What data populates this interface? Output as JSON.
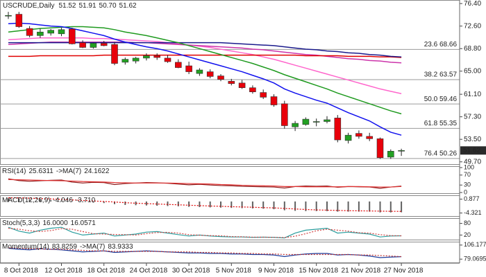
{
  "chart_data": [
    {
      "type": "candlestick",
      "symbol": "USCRUDE,Daily",
      "categories": [
        null,
        "8 Oct 2018",
        null,
        null,
        null,
        "12 Oct 2018",
        null,
        null,
        null,
        "18 Oct 2018",
        null,
        null,
        null,
        "24 Oct 2018",
        null,
        null,
        null,
        "30 Oct 2018",
        null,
        null,
        null,
        "5 Nov 2018",
        null,
        null,
        null,
        "9 Nov 2018",
        null,
        null,
        null,
        "15 Nov 2018",
        null,
        null,
        null,
        "21 Nov 2018",
        null,
        null,
        null,
        "27 Nov 2018"
      ],
      "open": [
        74.3,
        74.6,
        72.2,
        71.0,
        71.4,
        71.3,
        72.1,
        69.8,
        69.0,
        69.7,
        69.5,
        66.5,
        66.7,
        67.2,
        67.6,
        67.2,
        66.5,
        65.9,
        64.6,
        64.9,
        64.2,
        63.3,
        63.0,
        62.2,
        61.4,
        60.7,
        59.5,
        55.6,
        56.0,
        56.4,
        56.5,
        57.1,
        53.3,
        54.5,
        54.0,
        53.6,
        50.5,
        51.52
      ],
      "high": [
        75.0,
        75.0,
        72.6,
        72.2,
        72.1,
        72.3,
        72.3,
        70.2,
        69.8,
        70.1,
        69.9,
        67.3,
        67.4,
        68.0,
        68.0,
        67.7,
        67.0,
        66.6,
        65.5,
        65.3,
        64.5,
        63.7,
        63.5,
        62.6,
        61.9,
        61.1,
        60.0,
        56.6,
        57.2,
        57.0,
        57.4,
        57.6,
        54.6,
        55.0,
        54.6,
        53.8,
        51.8,
        51.91
      ],
      "low": [
        73.8,
        72.3,
        70.7,
        70.6,
        71.0,
        70.9,
        69.5,
        68.9,
        68.8,
        69.2,
        66.0,
        66.1,
        66.3,
        66.8,
        66.9,
        66.4,
        65.5,
        64.5,
        64.2,
        63.8,
        63.3,
        62.6,
        62.0,
        61.2,
        60.3,
        59.0,
        55.3,
        54.9,
        55.8,
        55.7,
        56.2,
        53.0,
        52.8,
        53.6,
        53.2,
        50.2,
        50.2,
        50.7
      ],
      "close": [
        74.4,
        72.5,
        71.0,
        71.6,
        71.9,
        72.0,
        69.6,
        69.0,
        69.7,
        69.3,
        66.3,
        67.0,
        67.2,
        67.6,
        67.3,
        66.6,
        65.6,
        64.9,
        65.2,
        64.1,
        63.6,
        62.9,
        62.2,
        61.5,
        60.6,
        59.3,
        55.8,
        56.2,
        56.9,
        56.5,
        56.8,
        53.4,
        54.2,
        54.0,
        53.6,
        50.4,
        51.5,
        51.62
      ],
      "low_last_label": "50.70",
      "up_color": "#22a022",
      "down_color": "#e8000b",
      "ylim": [
        49.2,
        77.0
      ],
      "yticks": [
        {
          "value": 76.4,
          "label": "76.40"
        },
        {
          "value": 72.6,
          "label": "72.60"
        },
        {
          "value": 68.8,
          "label": "68.80"
        },
        {
          "value": 65.0,
          "label": "65.00"
        },
        {
          "value": 61.1,
          "label": "61.10"
        },
        {
          "value": 57.3,
          "label": "57.30"
        },
        {
          "value": 53.5,
          "label": "53.50"
        },
        {
          "value": 49.7,
          "label": "49.70"
        }
      ],
      "fib_levels": [
        {
          "value": 68.66,
          "label": "23.6 68.66"
        },
        {
          "value": 63.57,
          "label": "38.2 63.57"
        },
        {
          "value": 59.46,
          "label": "50.0 59.46"
        },
        {
          "value": 55.35,
          "label": "61.8 55.35"
        },
        {
          "value": 50.26,
          "label": "76.4 50.26"
        }
      ],
      "overlays": [
        {
          "color": "#ff66cc",
          "values": [
            70.3,
            70.4,
            70.5,
            70.6,
            70.6,
            70.6,
            70.6,
            70.6,
            70.5,
            70.5,
            70.4,
            70.3,
            70.2,
            70.1,
            70.0,
            69.8,
            69.6,
            69.4,
            69.2,
            69.0,
            68.7,
            68.4,
            68.1,
            67.8,
            67.4,
            67.0,
            66.5,
            66.0,
            65.5,
            65.0,
            64.5,
            64.0,
            63.5,
            63.0,
            62.5,
            62.0,
            61.6,
            61.2
          ]
        },
        {
          "color": "#cc33aa",
          "values": [
            69.5,
            69.6,
            69.7,
            69.8,
            69.9,
            69.9,
            69.9,
            69.9,
            69.9,
            69.9,
            69.9,
            69.9,
            69.8,
            69.8,
            69.7,
            69.6,
            69.5,
            69.4,
            69.3,
            69.2,
            69.1,
            69.0,
            68.9,
            68.7,
            68.6,
            68.4,
            68.2,
            68.0,
            67.8,
            67.7,
            67.5,
            67.3,
            67.1,
            67.0,
            66.8,
            66.7,
            66.5,
            66.4
          ]
        },
        {
          "color": "#e00000",
          "values": [
            67.5,
            67.5,
            67.5,
            67.6,
            67.6,
            67.6,
            67.6,
            67.6,
            67.6,
            67.7,
            67.7,
            67.7,
            67.7,
            67.7,
            67.7,
            67.7,
            67.7,
            67.7,
            67.7,
            67.7,
            67.7,
            67.7,
            67.7,
            67.7,
            67.7,
            67.7,
            67.7,
            67.7,
            67.6,
            67.6,
            67.6,
            67.6,
            67.5,
            67.5,
            67.5,
            67.4,
            67.4,
            67.3
          ]
        },
        {
          "color": "#1a1a8c",
          "values": [
            69.8,
            69.8,
            69.8,
            69.8,
            69.8,
            69.8,
            69.8,
            69.8,
            69.8,
            69.8,
            69.8,
            69.8,
            69.8,
            69.8,
            69.8,
            69.8,
            69.8,
            69.8,
            69.8,
            69.8,
            69.8,
            69.7,
            69.6,
            69.5,
            69.4,
            69.3,
            69.1,
            68.9,
            68.7,
            68.6,
            68.4,
            68.3,
            68.1,
            68.0,
            67.8,
            67.7,
            67.5,
            67.4
          ]
        },
        {
          "color": "#1f9a1f",
          "values": [
            71.6,
            71.8,
            72.0,
            72.2,
            72.3,
            72.4,
            72.5,
            72.5,
            72.4,
            72.3,
            72.0,
            71.6,
            71.3,
            71.0,
            70.6,
            70.2,
            69.8,
            69.3,
            68.8,
            68.3,
            67.8,
            67.3,
            66.8,
            66.3,
            65.7,
            65.1,
            64.4,
            63.8,
            63.2,
            62.6,
            62.0,
            61.3,
            60.7,
            60.1,
            59.5,
            58.9,
            58.3,
            57.8
          ]
        },
        {
          "color": "#1010ee",
          "values": [
            73.0,
            73.1,
            73.0,
            72.8,
            72.6,
            72.5,
            72.2,
            71.8,
            71.4,
            71.0,
            70.4,
            69.9,
            69.5,
            69.1,
            68.8,
            68.4,
            67.9,
            67.4,
            66.9,
            66.4,
            65.9,
            65.4,
            64.9,
            64.3,
            63.7,
            63.0,
            62.0,
            61.3,
            60.7,
            60.1,
            59.6,
            58.8,
            58.0,
            57.3,
            56.6,
            55.6,
            54.7,
            54.2
          ]
        }
      ]
    },
    {
      "type": "line",
      "title": "RSI(14)",
      "ylim": [
        0,
        100
      ],
      "yticks": [
        0,
        30,
        70,
        100
      ],
      "series": [
        {
          "color": "#8b1a1a",
          "style": "solid",
          "values": [
            55,
            48,
            45,
            47,
            49,
            50,
            42,
            38,
            41,
            40,
            32,
            36,
            38,
            40,
            39,
            37,
            34,
            31,
            33,
            30,
            28,
            27,
            25,
            24,
            23,
            22,
            18,
            24,
            26,
            25,
            26,
            21,
            24,
            23,
            22,
            17,
            22,
            25.6311
          ]
        },
        {
          "label": "->MA(7)",
          "color": "#e03030",
          "style": "solid",
          "values": [
            52,
            51,
            50,
            49,
            48,
            47,
            46,
            44,
            43,
            42,
            40,
            39,
            38,
            38,
            38,
            38,
            37,
            36,
            35,
            34,
            32,
            31,
            29,
            28,
            27,
            26,
            24,
            24,
            23,
            23,
            23,
            23,
            24,
            24,
            23,
            22,
            22,
            24.1622
          ]
        }
      ]
    },
    {
      "type": "bar",
      "title": "MACD(12,26,9)",
      "ylim": [
        -5.2,
        1.8
      ],
      "yticks": [
        0.877,
        -4.321
      ],
      "series": [
        {
          "color": "#606060",
          "style": "bar",
          "values": [
            1.2,
            1.1,
            0.9,
            0.7,
            0.5,
            0.4,
            0.1,
            -0.2,
            -0.4,
            -0.6,
            -1.0,
            -1.3,
            -1.4,
            -1.5,
            -1.6,
            -1.7,
            -1.8,
            -2.0,
            -2.1,
            -2.2,
            -2.3,
            -2.4,
            -2.5,
            -2.6,
            -2.7,
            -2.9,
            -3.3,
            -3.5,
            -3.6,
            -3.6,
            -3.6,
            -3.8,
            -3.8,
            -3.8,
            -3.8,
            -4.1,
            -4.1,
            -4.046
          ]
        },
        {
          "color": "#e00000",
          "style": "dotted",
          "last_value_label": "-3.710",
          "values": [
            1.4,
            1.35,
            1.25,
            1.1,
            0.95,
            0.8,
            0.6,
            0.4,
            0.2,
            0.0,
            -0.2,
            -0.45,
            -0.65,
            -0.8,
            -0.95,
            -1.1,
            -1.25,
            -1.4,
            -1.55,
            -1.7,
            -1.8,
            -1.95,
            -2.05,
            -2.15,
            -2.3,
            -2.4,
            -2.6,
            -2.8,
            -3.0,
            -3.15,
            -3.25,
            -3.35,
            -3.45,
            -3.5,
            -3.55,
            -3.62,
            -3.68,
            -3.71
          ]
        }
      ]
    },
    {
      "type": "line",
      "title": "Stoch(5,3,3)",
      "ylim": [
        0,
        100
      ],
      "yticks": [
        20,
        80
      ],
      "series": [
        {
          "color": "#2a9d9d",
          "style": "solid",
          "last_value_label": "16.0000",
          "values": [
            60,
            40,
            30,
            45,
            55,
            60,
            35,
            20,
            25,
            30,
            15,
            20,
            25,
            35,
            38,
            30,
            22,
            15,
            20,
            15,
            12,
            10,
            10,
            8,
            9,
            8,
            5,
            30,
            45,
            50,
            55,
            30,
            35,
            30,
            25,
            10,
            15,
            16
          ]
        },
        {
          "color": "#d04040",
          "style": "dotted",
          "values": [
            55,
            50,
            42,
            38,
            43,
            53,
            50,
            38,
            27,
            25,
            23,
            22,
            20,
            27,
            33,
            34,
            30,
            22,
            19,
            17,
            16,
            12,
            11,
            9,
            9,
            8,
            7,
            14,
            27,
            42,
            50,
            45,
            40,
            32,
            30,
            22,
            17,
            16.0571
          ]
        }
      ]
    },
    {
      "type": "line",
      "title": "Momentum(14)",
      "ylim": [
        74,
        110
      ],
      "yticks": [
        106.1773,
        79.0695
      ],
      "series": [
        {
          "color": "#1a3a9a",
          "style": "solid",
          "values": [
            100,
            98,
            97,
            99,
            98,
            97,
            95,
            93,
            94,
            95,
            92,
            93,
            94,
            95,
            94,
            93,
            92,
            91,
            91,
            90,
            90,
            89,
            89,
            88,
            88,
            87,
            84,
            87,
            89,
            90,
            90,
            87,
            88,
            87,
            85,
            82,
            83,
            83.8259
          ]
        },
        {
          "label": "->MA(7)",
          "color": "#c03030",
          "style": "dotted",
          "values": [
            101,
            100,
            99,
            99,
            98,
            98,
            97,
            96,
            95,
            95,
            94,
            94,
            94,
            94,
            94,
            93,
            93,
            93,
            92,
            92,
            91,
            91,
            90,
            90,
            89,
            89,
            88,
            88,
            88,
            88,
            88,
            88,
            88,
            87,
            87,
            86,
            85,
            83.9333
          ]
        }
      ]
    }
  ]
}
